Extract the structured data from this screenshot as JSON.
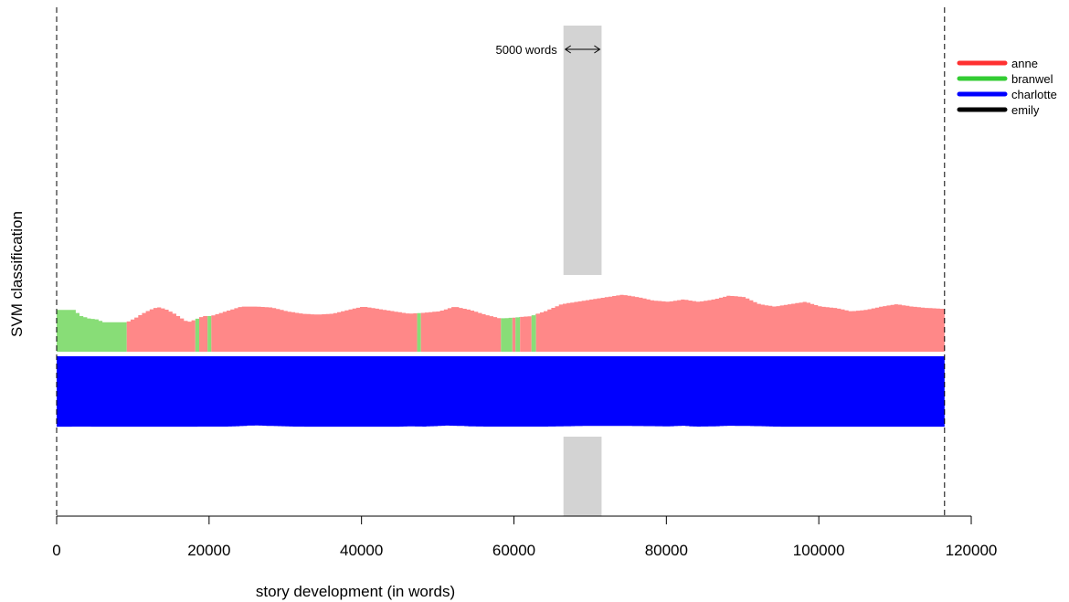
{
  "chart_data": {
    "type": "area",
    "title": "",
    "xlabel": "story development (in words)",
    "ylabel": "SVM classification",
    "xlim": [
      0,
      120000
    ],
    "xticks": [
      0,
      20000,
      40000,
      60000,
      80000,
      100000,
      120000
    ],
    "xtick_labels": [
      "0",
      "20000",
      "40000",
      "60000",
      "80000",
      "100000",
      "120000"
    ],
    "text_end_words": 116500,
    "window": {
      "start": 66500,
      "end": 71500,
      "label": "5000 words"
    },
    "legend": {
      "placement": "top-right",
      "entries": [
        {
          "label": "anne",
          "color": "#ff3030"
        },
        {
          "label": "branwel",
          "color": "#33cc33"
        },
        {
          "label": "charlotte",
          "color": "#0000ff"
        },
        {
          "label": "emily",
          "color": "#000000"
        }
      ]
    },
    "strips": {
      "upper_colors": {
        "anne": "#ff8888",
        "branwel": "#88dd77"
      },
      "lower_color": "#0000ff"
    },
    "upper_segments": [
      {
        "class": "branwel",
        "start": 0,
        "end": 9200
      },
      {
        "class": "anne",
        "start": 9200,
        "end": 18200
      },
      {
        "class": "branwel",
        "start": 18200,
        "end": 18700
      },
      {
        "class": "anne",
        "start": 18700,
        "end": 19800
      },
      {
        "class": "branwel",
        "start": 19800,
        "end": 20300
      },
      {
        "class": "anne",
        "start": 20300,
        "end": 47300
      },
      {
        "class": "branwel",
        "start": 47300,
        "end": 47800
      },
      {
        "class": "anne",
        "start": 47800,
        "end": 58300
      },
      {
        "class": "branwel",
        "start": 58300,
        "end": 59800
      },
      {
        "class": "anne",
        "start": 59800,
        "end": 60200
      },
      {
        "class": "branwel",
        "start": 60200,
        "end": 60800
      },
      {
        "class": "anne",
        "start": 60800,
        "end": 62300
      },
      {
        "class": "branwel",
        "start": 62300,
        "end": 62900
      },
      {
        "class": "anne",
        "start": 62900,
        "end": 116500
      }
    ],
    "upper_profile": {
      "x": [
        0,
        2000,
        3000,
        4000,
        5000,
        6000,
        9000,
        10000,
        11000,
        12000,
        13000,
        14000,
        15000,
        16000,
        17000,
        18000,
        19000,
        20000,
        22000,
        24000,
        26000,
        28000,
        30000,
        32000,
        34000,
        36000,
        38000,
        40000,
        42000,
        44000,
        46000,
        48000,
        50000,
        52000,
        54000,
        56000,
        58000,
        60000,
        62000,
        64000,
        66000,
        68000,
        70000,
        72000,
        74000,
        76000,
        78000,
        80000,
        82000,
        84000,
        86000,
        88000,
        90000,
        92000,
        94000,
        96000,
        98000,
        100000,
        102000,
        104000,
        106000,
        108000,
        110000,
        112000,
        114000,
        116500
      ],
      "y": [
        0.88,
        0.88,
        0.75,
        0.7,
        0.68,
        0.62,
        0.62,
        0.7,
        0.8,
        0.88,
        0.94,
        0.9,
        0.82,
        0.72,
        0.62,
        0.68,
        0.75,
        0.75,
        0.85,
        0.95,
        0.95,
        0.93,
        0.85,
        0.8,
        0.78,
        0.8,
        0.88,
        0.95,
        0.9,
        0.85,
        0.8,
        0.82,
        0.85,
        0.95,
        0.88,
        0.78,
        0.7,
        0.72,
        0.75,
        0.86,
        1.0,
        1.05,
        1.1,
        1.15,
        1.2,
        1.15,
        1.08,
        1.05,
        1.1,
        1.05,
        1.1,
        1.18,
        1.15,
        1.0,
        0.95,
        1.0,
        1.05,
        0.95,
        0.92,
        0.85,
        0.88,
        0.95,
        1.0,
        0.95,
        0.92,
        0.9
      ]
    },
    "lower_profile": {
      "x": [
        0,
        3000,
        6000,
        10000,
        16000,
        20000,
        22000,
        24000,
        25000,
        26000,
        28000,
        30000,
        31000,
        34000,
        36000,
        38000,
        40000,
        42000,
        44000,
        45000,
        46000,
        48000,
        50000,
        51000,
        52000,
        53000,
        54000,
        56000,
        58000,
        60000,
        62000,
        64000,
        66000,
        68000,
        70000,
        72000,
        74000,
        76000,
        78000,
        80000,
        81000,
        82000,
        83000,
        84000,
        86000,
        88000,
        90000,
        92000,
        94000,
        96000,
        98000,
        100000,
        104000,
        108000,
        112000,
        116500
      ],
      "y": [
        0.98,
        1.0,
        0.98,
        0.98,
        0.98,
        1.0,
        1.0,
        1.1,
        1.18,
        1.2,
        1.12,
        1.05,
        1.0,
        0.98,
        0.98,
        0.98,
        0.98,
        0.98,
        0.98,
        1.0,
        1.05,
        1.0,
        1.12,
        1.18,
        1.15,
        1.12,
        1.05,
        1.0,
        1.0,
        1.0,
        1.0,
        1.0,
        1.05,
        1.1,
        1.12,
        1.12,
        1.12,
        1.1,
        1.08,
        1.05,
        1.1,
        1.15,
        1.05,
        1.0,
        1.05,
        1.15,
        1.12,
        1.08,
        1.0,
        0.98,
        0.98,
        0.98,
        0.98,
        0.98,
        0.98,
        0.98
      ]
    }
  }
}
